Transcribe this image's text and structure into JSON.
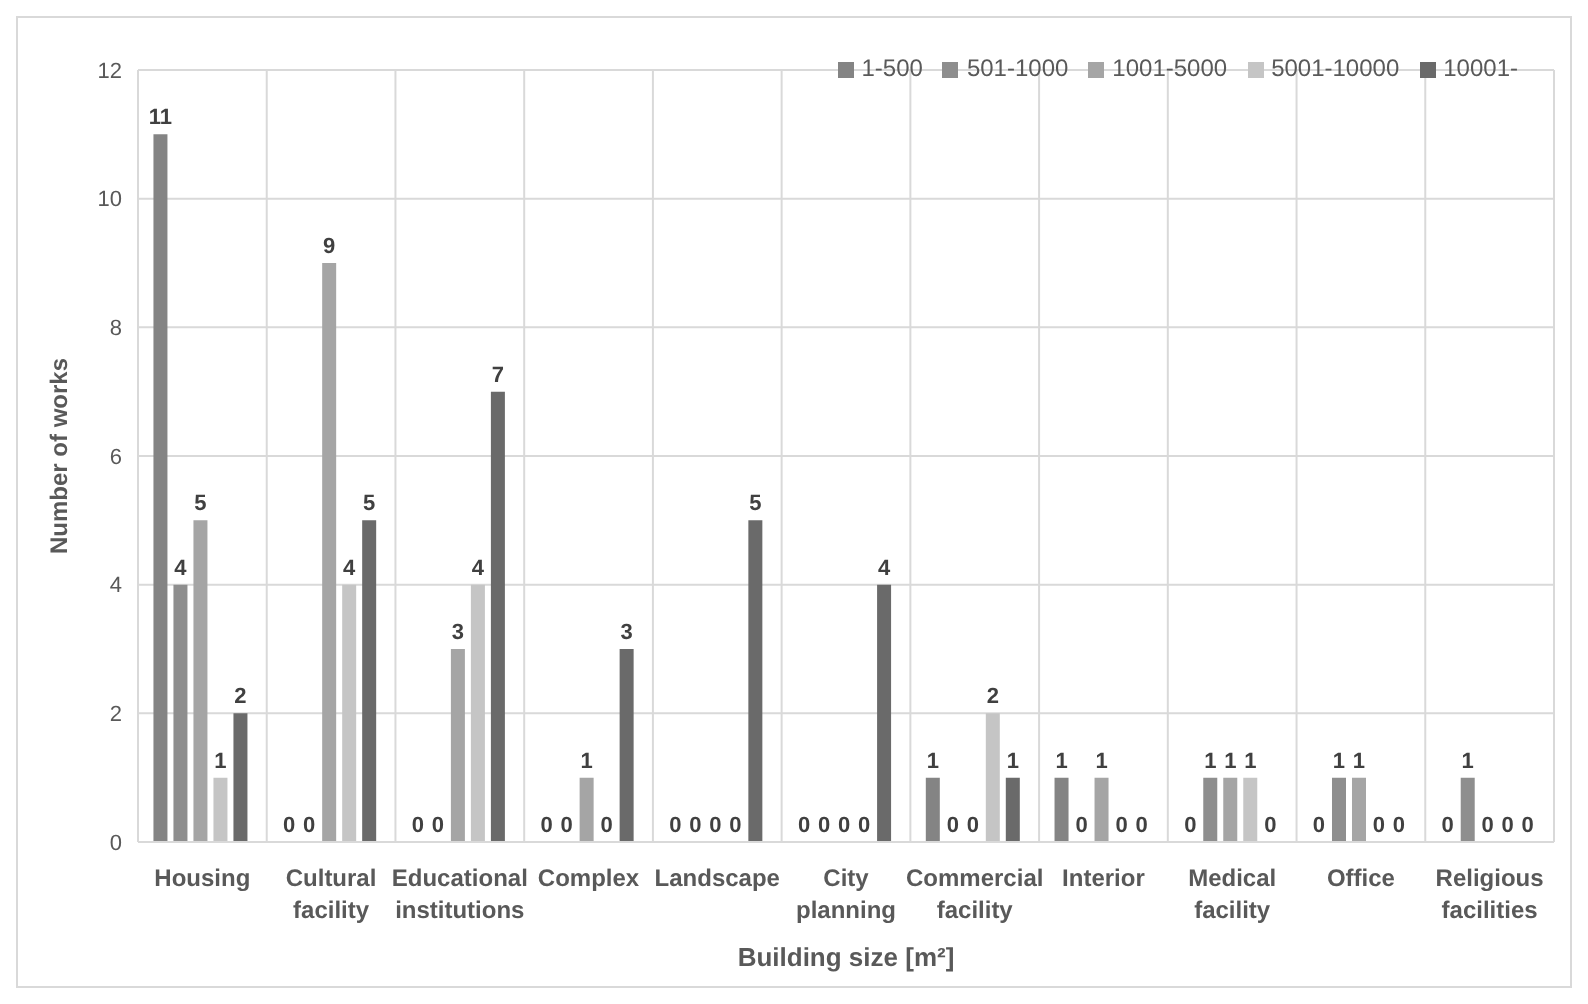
{
  "chart_data": {
    "type": "bar",
    "xlabel": "Building size [m²]",
    "ylabel": "Number of works",
    "categories": [
      "Housing",
      "Cultural facility",
      "Educational institutions",
      "Complex",
      "Landscape",
      "City planning",
      "Commercial facility",
      "Interior",
      "Medical facility",
      "Office",
      "Religious facilities"
    ],
    "series": [
      {
        "name": "1-500",
        "color": "#848484",
        "values": [
          11,
          0,
          0,
          0,
          0,
          0,
          1,
          1,
          0,
          0,
          0
        ]
      },
      {
        "name": "501-1000",
        "color": "#8e8e8e",
        "values": [
          4,
          0,
          0,
          0,
          0,
          0,
          0,
          0,
          1,
          1,
          1
        ]
      },
      {
        "name": "1001-5000",
        "color": "#a5a5a5",
        "values": [
          5,
          9,
          3,
          1,
          0,
          0,
          0,
          1,
          1,
          1,
          0
        ]
      },
      {
        "name": "5001-10000",
        "color": "#c5c5c5",
        "values": [
          1,
          4,
          4,
          0,
          0,
          0,
          2,
          0,
          1,
          0,
          0
        ]
      },
      {
        "name": "10001-",
        "color": "#6a6a6a",
        "values": [
          2,
          5,
          7,
          3,
          5,
          4,
          1,
          0,
          0,
          0,
          0
        ]
      }
    ],
    "ylim": [
      0,
      12
    ],
    "yticks": [
      0,
      2,
      4,
      6,
      8,
      10,
      12
    ],
    "grid": true,
    "legend": "top right",
    "data_labels": true
  }
}
